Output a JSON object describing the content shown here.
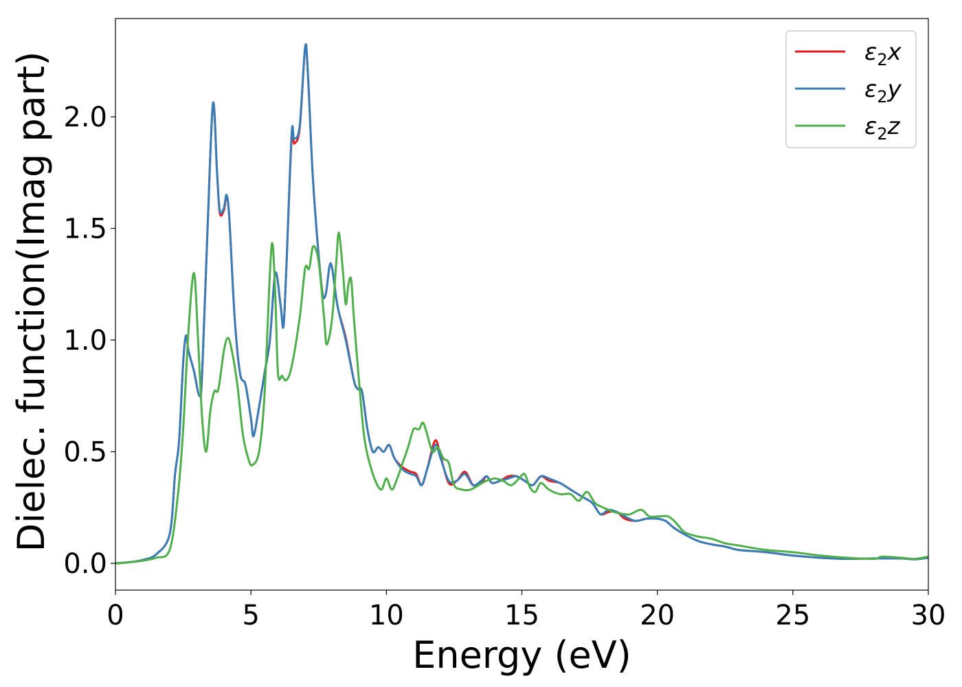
{
  "chart_data": {
    "type": "line",
    "xlabel": "Energy (eV)",
    "ylabel": "Dielec. function(Imag part)",
    "xlim": [
      0,
      30
    ],
    "ylim": [
      -0.12,
      2.44
    ],
    "xticks": [
      "0",
      "5",
      "10",
      "15",
      "20",
      "25",
      "30"
    ],
    "yticks": [
      "0.0",
      "0.5",
      "1.0",
      "1.5",
      "2.0"
    ],
    "grid": false,
    "legend_position": "top-right",
    "series": [
      {
        "name": "ε2x",
        "legend": {
          "base": "ε",
          "sub": "2",
          "var": "x"
        },
        "color": "#e41a1c",
        "points": [
          [
            0,
            0
          ],
          [
            0.5,
            0.005
          ],
          [
            1,
            0.015
          ],
          [
            1.5,
            0.04
          ],
          [
            2,
            0.13
          ],
          [
            2.2,
            0.4
          ],
          [
            2.35,
            0.55
          ],
          [
            2.5,
            0.9
          ],
          [
            2.6,
            1.02
          ],
          [
            2.7,
            0.95
          ],
          [
            2.9,
            0.86
          ],
          [
            3.1,
            0.75
          ],
          [
            3.2,
            0.85
          ],
          [
            3.4,
            1.5
          ],
          [
            3.6,
            2.06
          ],
          [
            3.75,
            1.75
          ],
          [
            3.85,
            1.57
          ],
          [
            4.0,
            1.58
          ],
          [
            4.1,
            1.64
          ],
          [
            4.2,
            1.55
          ],
          [
            4.4,
            1.1
          ],
          [
            4.6,
            0.85
          ],
          [
            4.8,
            0.8
          ],
          [
            5.0,
            0.65
          ],
          [
            5.1,
            0.57
          ],
          [
            5.3,
            0.7
          ],
          [
            5.5,
            0.85
          ],
          [
            5.7,
            1.0
          ],
          [
            5.9,
            1.3
          ],
          [
            6.1,
            1.15
          ],
          [
            6.2,
            1.06
          ],
          [
            6.3,
            1.3
          ],
          [
            6.5,
            1.9
          ],
          [
            6.6,
            1.88
          ],
          [
            6.8,
            1.95
          ],
          [
            7.0,
            2.31
          ],
          [
            7.1,
            2.2
          ],
          [
            7.3,
            1.7
          ],
          [
            7.6,
            1.25
          ],
          [
            7.75,
            1.2
          ],
          [
            7.9,
            1.33
          ],
          [
            8.0,
            1.32
          ],
          [
            8.2,
            1.15
          ],
          [
            8.5,
            1.01
          ],
          [
            8.8,
            0.82
          ],
          [
            8.95,
            0.78
          ],
          [
            9.1,
            0.77
          ],
          [
            9.3,
            0.6
          ],
          [
            9.5,
            0.5
          ],
          [
            9.7,
            0.52
          ],
          [
            9.9,
            0.5
          ],
          [
            10.1,
            0.53
          ],
          [
            10.3,
            0.47
          ],
          [
            10.6,
            0.43
          ],
          [
            10.9,
            0.41
          ],
          [
            11.1,
            0.4
          ],
          [
            11.3,
            0.35
          ],
          [
            11.5,
            0.42
          ],
          [
            11.8,
            0.55
          ],
          [
            12.0,
            0.48
          ],
          [
            12.3,
            0.36
          ],
          [
            12.6,
            0.37
          ],
          [
            12.9,
            0.41
          ],
          [
            13.2,
            0.35
          ],
          [
            13.5,
            0.36
          ],
          [
            13.7,
            0.39
          ],
          [
            13.9,
            0.36
          ],
          [
            14.2,
            0.37
          ],
          [
            14.5,
            0.39
          ],
          [
            14.8,
            0.39
          ],
          [
            15.1,
            0.37
          ],
          [
            15.4,
            0.35
          ],
          [
            15.7,
            0.39
          ],
          [
            16.0,
            0.37
          ],
          [
            16.4,
            0.36
          ],
          [
            16.8,
            0.33
          ],
          [
            17.2,
            0.3
          ],
          [
            17.6,
            0.27
          ],
          [
            17.9,
            0.22
          ],
          [
            18.2,
            0.23
          ],
          [
            18.5,
            0.23
          ],
          [
            18.8,
            0.2
          ],
          [
            19.2,
            0.19
          ],
          [
            19.6,
            0.2
          ],
          [
            20.0,
            0.2
          ],
          [
            20.3,
            0.19
          ],
          [
            20.6,
            0.16
          ],
          [
            21.0,
            0.13
          ],
          [
            21.5,
            0.1
          ],
          [
            22.0,
            0.085
          ],
          [
            22.5,
            0.075
          ],
          [
            23.0,
            0.06
          ],
          [
            24.0,
            0.05
          ],
          [
            25.0,
            0.035
          ],
          [
            26.0,
            0.025
          ],
          [
            27.0,
            0.02
          ],
          [
            28.0,
            0.022
          ],
          [
            29.0,
            0.022
          ],
          [
            29.5,
            0.018
          ],
          [
            30.0,
            0.025
          ]
        ]
      },
      {
        "name": "ε2y",
        "legend": {
          "base": "ε",
          "sub": "2",
          "var": "y"
        },
        "color": "#377eb8",
        "points": [
          [
            0,
            0
          ],
          [
            0.5,
            0.005
          ],
          [
            1,
            0.015
          ],
          [
            1.5,
            0.04
          ],
          [
            2,
            0.13
          ],
          [
            2.2,
            0.4
          ],
          [
            2.35,
            0.55
          ],
          [
            2.5,
            0.9
          ],
          [
            2.6,
            1.02
          ],
          [
            2.7,
            0.95
          ],
          [
            2.9,
            0.86
          ],
          [
            3.1,
            0.75
          ],
          [
            3.2,
            0.85
          ],
          [
            3.4,
            1.5
          ],
          [
            3.6,
            2.06
          ],
          [
            3.75,
            1.75
          ],
          [
            3.85,
            1.58
          ],
          [
            4.0,
            1.59
          ],
          [
            4.1,
            1.65
          ],
          [
            4.2,
            1.55
          ],
          [
            4.4,
            1.1
          ],
          [
            4.6,
            0.85
          ],
          [
            4.8,
            0.8
          ],
          [
            5.0,
            0.65
          ],
          [
            5.1,
            0.57
          ],
          [
            5.3,
            0.7
          ],
          [
            5.5,
            0.85
          ],
          [
            5.7,
            1.0
          ],
          [
            5.9,
            1.3
          ],
          [
            6.1,
            1.15
          ],
          [
            6.2,
            1.06
          ],
          [
            6.3,
            1.3
          ],
          [
            6.5,
            1.92
          ],
          [
            6.6,
            1.9
          ],
          [
            6.8,
            1.96
          ],
          [
            7.0,
            2.31
          ],
          [
            7.1,
            2.2
          ],
          [
            7.3,
            1.7
          ],
          [
            7.6,
            1.25
          ],
          [
            7.75,
            1.2
          ],
          [
            7.9,
            1.33
          ],
          [
            8.0,
            1.32
          ],
          [
            8.2,
            1.15
          ],
          [
            8.5,
            1.0
          ],
          [
            8.8,
            0.82
          ],
          [
            8.95,
            0.78
          ],
          [
            9.1,
            0.77
          ],
          [
            9.3,
            0.6
          ],
          [
            9.5,
            0.5
          ],
          [
            9.7,
            0.52
          ],
          [
            9.9,
            0.5
          ],
          [
            10.1,
            0.53
          ],
          [
            10.3,
            0.47
          ],
          [
            10.6,
            0.42
          ],
          [
            10.9,
            0.4
          ],
          [
            11.1,
            0.39
          ],
          [
            11.3,
            0.35
          ],
          [
            11.5,
            0.42
          ],
          [
            11.8,
            0.53
          ],
          [
            12.0,
            0.47
          ],
          [
            12.3,
            0.37
          ],
          [
            12.6,
            0.37
          ],
          [
            12.9,
            0.4
          ],
          [
            13.2,
            0.35
          ],
          [
            13.5,
            0.37
          ],
          [
            13.7,
            0.39
          ],
          [
            13.9,
            0.36
          ],
          [
            14.2,
            0.37
          ],
          [
            14.5,
            0.38
          ],
          [
            14.8,
            0.39
          ],
          [
            15.1,
            0.37
          ],
          [
            15.4,
            0.35
          ],
          [
            15.7,
            0.39
          ],
          [
            16.0,
            0.38
          ],
          [
            16.4,
            0.36
          ],
          [
            16.8,
            0.33
          ],
          [
            17.2,
            0.3
          ],
          [
            17.6,
            0.27
          ],
          [
            17.9,
            0.22
          ],
          [
            18.2,
            0.24
          ],
          [
            18.5,
            0.23
          ],
          [
            18.8,
            0.21
          ],
          [
            19.2,
            0.19
          ],
          [
            19.6,
            0.2
          ],
          [
            20.0,
            0.2
          ],
          [
            20.3,
            0.19
          ],
          [
            20.6,
            0.16
          ],
          [
            21.0,
            0.13
          ],
          [
            21.5,
            0.1
          ],
          [
            22.0,
            0.085
          ],
          [
            22.5,
            0.075
          ],
          [
            23.0,
            0.06
          ],
          [
            24.0,
            0.05
          ],
          [
            25.0,
            0.035
          ],
          [
            26.0,
            0.025
          ],
          [
            27.0,
            0.02
          ],
          [
            28.0,
            0.022
          ],
          [
            29.0,
            0.022
          ],
          [
            29.5,
            0.018
          ],
          [
            30.0,
            0.025
          ]
        ]
      },
      {
        "name": "ε2z",
        "legend": {
          "base": "ε",
          "sub": "2",
          "var": "z"
        },
        "color": "#4daf4a",
        "points": [
          [
            0,
            0
          ],
          [
            0.5,
            0.005
          ],
          [
            1,
            0.012
          ],
          [
            1.5,
            0.025
          ],
          [
            2,
            0.06
          ],
          [
            2.3,
            0.3
          ],
          [
            2.5,
            0.6
          ],
          [
            2.7,
            1.05
          ],
          [
            2.9,
            1.3
          ],
          [
            3.05,
            1.0
          ],
          [
            3.2,
            0.65
          ],
          [
            3.35,
            0.5
          ],
          [
            3.5,
            0.68
          ],
          [
            3.65,
            0.77
          ],
          [
            3.8,
            0.78
          ],
          [
            4.0,
            0.95
          ],
          [
            4.15,
            1.01
          ],
          [
            4.3,
            0.95
          ],
          [
            4.5,
            0.8
          ],
          [
            4.7,
            0.58
          ],
          [
            4.9,
            0.47
          ],
          [
            5.05,
            0.44
          ],
          [
            5.3,
            0.5
          ],
          [
            5.5,
            0.75
          ],
          [
            5.7,
            1.3
          ],
          [
            5.8,
            1.43
          ],
          [
            5.9,
            1.2
          ],
          [
            6.0,
            0.85
          ],
          [
            6.15,
            0.84
          ],
          [
            6.3,
            0.82
          ],
          [
            6.5,
            0.88
          ],
          [
            6.8,
            1.1
          ],
          [
            7.0,
            1.32
          ],
          [
            7.15,
            1.32
          ],
          [
            7.3,
            1.42
          ],
          [
            7.5,
            1.35
          ],
          [
            7.7,
            1.1
          ],
          [
            7.8,
            0.98
          ],
          [
            8.0,
            1.1
          ],
          [
            8.15,
            1.35
          ],
          [
            8.25,
            1.48
          ],
          [
            8.4,
            1.3
          ],
          [
            8.5,
            1.16
          ],
          [
            8.6,
            1.25
          ],
          [
            8.7,
            1.27
          ],
          [
            8.8,
            1.1
          ],
          [
            9.0,
            0.8
          ],
          [
            9.2,
            0.55
          ],
          [
            9.5,
            0.4
          ],
          [
            9.8,
            0.33
          ],
          [
            10.0,
            0.38
          ],
          [
            10.2,
            0.33
          ],
          [
            10.4,
            0.38
          ],
          [
            10.6,
            0.45
          ],
          [
            10.8,
            0.52
          ],
          [
            11.0,
            0.6
          ],
          [
            11.2,
            0.6
          ],
          [
            11.35,
            0.63
          ],
          [
            11.5,
            0.58
          ],
          [
            11.7,
            0.5
          ],
          [
            11.9,
            0.52
          ],
          [
            12.1,
            0.47
          ],
          [
            12.3,
            0.45
          ],
          [
            12.5,
            0.35
          ],
          [
            12.8,
            0.33
          ],
          [
            13.1,
            0.33
          ],
          [
            13.4,
            0.35
          ],
          [
            13.7,
            0.37
          ],
          [
            14.0,
            0.38
          ],
          [
            14.3,
            0.37
          ],
          [
            14.6,
            0.35
          ],
          [
            14.9,
            0.38
          ],
          [
            15.1,
            0.4
          ],
          [
            15.3,
            0.34
          ],
          [
            15.5,
            0.32
          ],
          [
            15.7,
            0.36
          ],
          [
            16.0,
            0.33
          ],
          [
            16.4,
            0.31
          ],
          [
            16.8,
            0.31
          ],
          [
            17.1,
            0.28
          ],
          [
            17.4,
            0.32
          ],
          [
            17.7,
            0.27
          ],
          [
            18.0,
            0.25
          ],
          [
            18.4,
            0.23
          ],
          [
            18.8,
            0.22
          ],
          [
            19.0,
            0.22
          ],
          [
            19.4,
            0.24
          ],
          [
            19.7,
            0.21
          ],
          [
            20.0,
            0.21
          ],
          [
            20.4,
            0.21
          ],
          [
            20.7,
            0.18
          ],
          [
            21.0,
            0.14
          ],
          [
            21.5,
            0.12
          ],
          [
            22.0,
            0.11
          ],
          [
            22.5,
            0.09
          ],
          [
            23.0,
            0.08
          ],
          [
            24.0,
            0.06
          ],
          [
            25.0,
            0.05
          ],
          [
            26.0,
            0.035
          ],
          [
            27.0,
            0.025
          ],
          [
            28.0,
            0.02
          ],
          [
            28.3,
            0.03
          ],
          [
            29.0,
            0.025
          ],
          [
            29.5,
            0.02
          ],
          [
            30.0,
            0.03
          ]
        ]
      }
    ]
  }
}
